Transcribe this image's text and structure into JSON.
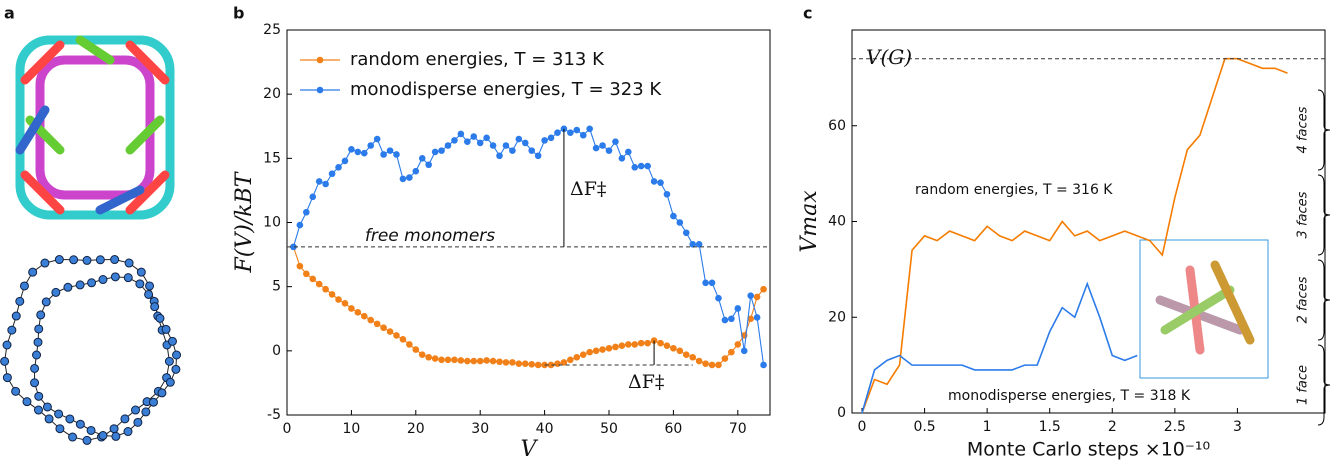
{
  "panel_a": {
    "label": "a"
  },
  "chart_data": [
    {
      "type": "line",
      "label": "b",
      "xlabel": "V",
      "ylabel": "F(V)/kBT",
      "xlim": [
        0,
        75
      ],
      "ylim": [
        -5,
        25
      ],
      "xticks": [
        0,
        10,
        20,
        30,
        40,
        50,
        60,
        70
      ],
      "yticks": [
        -5,
        0,
        5,
        10,
        15,
        20,
        25
      ],
      "legend": "upper left",
      "markers": true,
      "annotations": [
        "free monomers",
        "ΔF‡",
        "ΔF‡"
      ],
      "x": [
        1,
        2,
        3,
        4,
        5,
        6,
        7,
        8,
        9,
        10,
        11,
        12,
        13,
        14,
        15,
        16,
        17,
        18,
        19,
        20,
        21,
        22,
        23,
        24,
        25,
        26,
        27,
        28,
        29,
        30,
        31,
        32,
        33,
        34,
        35,
        36,
        37,
        38,
        39,
        40,
        41,
        42,
        43,
        44,
        45,
        46,
        47,
        48,
        49,
        50,
        51,
        52,
        53,
        54,
        55,
        56,
        57,
        58,
        59,
        60,
        61,
        62,
        63,
        64,
        65,
        66,
        67,
        68,
        69,
        70,
        71,
        72,
        73,
        74
      ],
      "series": [
        {
          "name": "random energies, T = 313 K",
          "color": "#f28018",
          "values": [
            8.1,
            6.6,
            6,
            5.6,
            5.2,
            4.8,
            4.4,
            4,
            3.7,
            3.3,
            3,
            2.7,
            2.4,
            2.1,
            1.8,
            1.5,
            1.2,
            0.9,
            0.5,
            0.1,
            -0.3,
            -0.5,
            -0.6,
            -0.7,
            -0.7,
            -0.7,
            -0.75,
            -0.8,
            -0.8,
            -0.8,
            -0.75,
            -0.8,
            -0.85,
            -0.9,
            -0.9,
            -1,
            -1,
            -1.05,
            -1.1,
            -1.1,
            -1.1,
            -1,
            -0.9,
            -0.7,
            -0.5,
            -0.3,
            -0.1,
            0,
            0.1,
            0.2,
            0.3,
            0.4,
            0.5,
            0.5,
            0.6,
            0.6,
            0.8,
            0.6,
            0.4,
            0.2,
            0,
            -0.3,
            -0.5,
            -0.8,
            -1,
            -1.1,
            -1.1,
            -0.6,
            -0.1,
            0.5,
            1.2,
            2.5,
            4.2,
            4.8
          ]
        },
        {
          "name": "monodisperse energies, T = 323 K",
          "color": "#2b7bea",
          "values": [
            8.1,
            9.8,
            10.8,
            12,
            13.2,
            13,
            13.8,
            14.3,
            14.8,
            15.7,
            15.5,
            15.4,
            16,
            16.5,
            15.3,
            15.6,
            15.3,
            13.4,
            13.5,
            14,
            15,
            14.5,
            15.5,
            15.6,
            16,
            16.4,
            16.9,
            16.3,
            16.7,
            16.2,
            16.6,
            16,
            15.2,
            16,
            15.6,
            16.5,
            16.2,
            15.6,
            15.2,
            16.4,
            16.6,
            17,
            17.3,
            17,
            17.2,
            16.8,
            17.3,
            15.8,
            16,
            15.6,
            16.3,
            15,
            15.5,
            14.3,
            14.4,
            14.4,
            13.2,
            13.1,
            12.2,
            10.5,
            10,
            9.2,
            8.3,
            8.3,
            5.3,
            5.3,
            4.1,
            2.4,
            2.5,
            3.3,
            0,
            4.3,
            2.6,
            -1.1
          ]
        }
      ]
    },
    {
      "type": "line",
      "label": "c",
      "xlabel": "Monte Carlo steps ×10⁻¹⁰",
      "ylabel": "Vmax",
      "xlim": [
        -0.08,
        3.7
      ],
      "ylim": [
        0,
        80
      ],
      "xticks": [
        0,
        0.5,
        1,
        1.5,
        2,
        2.5,
        3
      ],
      "yticks": [
        0,
        20,
        40,
        60
      ],
      "annotations": [
        "V(G)",
        "1 face",
        "2 faces",
        "3 faces",
        "4 faces"
      ],
      "series": [
        {
          "name": "random energies, T = 316 K",
          "color": "#f57c00",
          "x": [
            0,
            0.1,
            0.2,
            0.3,
            0.4,
            0.5,
            0.6,
            0.7,
            0.8,
            0.9,
            1,
            1.1,
            1.2,
            1.3,
            1.4,
            1.5,
            1.6,
            1.7,
            1.8,
            1.9,
            2,
            2.1,
            2.2,
            2.3,
            2.4,
            2.5,
            2.6,
            2.7,
            2.8,
            2.9,
            3,
            3.1,
            3.2,
            3.3,
            3.4
          ],
          "values": [
            0,
            7,
            6,
            10,
            34,
            37,
            36,
            38,
            37,
            36,
            39,
            37,
            36,
            38,
            37,
            36,
            40,
            37,
            38,
            36,
            37,
            38,
            37,
            36,
            33,
            45,
            55,
            58,
            66,
            74,
            74,
            73,
            72,
            72,
            71
          ]
        },
        {
          "name": "monodisperse energies, T = 318 K",
          "color": "#2b7bea",
          "x": [
            0,
            0.1,
            0.2,
            0.3,
            0.4,
            0.5,
            0.6,
            0.7,
            0.8,
            0.9,
            1,
            1.1,
            1.2,
            1.3,
            1.4,
            1.5,
            1.6,
            1.7,
            1.8,
            1.9,
            2,
            2.1,
            2.2
          ],
          "values": [
            0,
            9,
            11,
            12,
            10,
            10,
            10,
            10,
            10,
            9,
            9,
            9,
            9,
            10,
            10,
            17,
            22,
            20,
            27,
            20,
            12,
            11,
            12
          ]
        }
      ]
    }
  ]
}
